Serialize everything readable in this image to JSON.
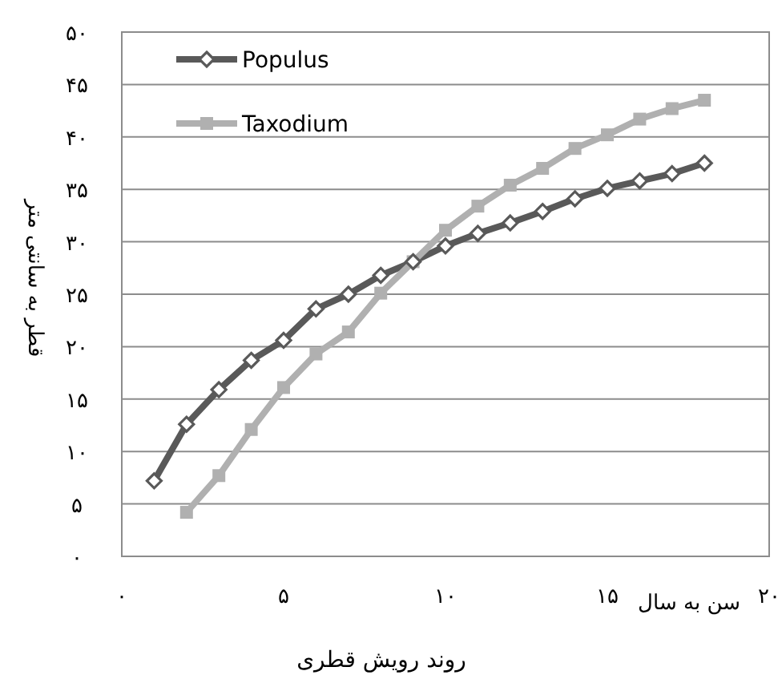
{
  "chart_data": {
    "type": "line",
    "title": "روند رویش قطری",
    "xlabel": "سن به سال",
    "ylabel": "قطر به سانتی متر",
    "xlim": [
      0,
      20
    ],
    "xticks": [
      {
        "value": 0,
        "label": "۰"
      },
      {
        "value": 5,
        "label": "۵"
      },
      {
        "value": 10,
        "label": "۱۰"
      },
      {
        "value": 15,
        "label": "۱۵"
      },
      {
        "value": 20,
        "label": "۲۰"
      }
    ],
    "ylim": [
      0,
      50
    ],
    "yticks": [
      {
        "value": 0,
        "label": "۰"
      },
      {
        "value": 5,
        "label": "۵"
      },
      {
        "value": 10,
        "label": "۱۰"
      },
      {
        "value": 15,
        "label": "۱۵"
      },
      {
        "value": 20,
        "label": "۲۰"
      },
      {
        "value": 25,
        "label": "۲۵"
      },
      {
        "value": 30,
        "label": "۳۰"
      },
      {
        "value": 35,
        "label": "۳۵"
      },
      {
        "value": 40,
        "label": "۴۰"
      },
      {
        "value": 45,
        "label": "۴۵"
      },
      {
        "value": 50,
        "label": "۵۰"
      }
    ],
    "grid": "y",
    "legend": "top left",
    "series": [
      {
        "name": "Populus",
        "color": "#595959",
        "marker": "diamond",
        "x": [
          1,
          2,
          3,
          4,
          5,
          6,
          7,
          8,
          9,
          10,
          11,
          12,
          13,
          14,
          15,
          16,
          17,
          18
        ],
        "values": [
          7.2,
          12.6,
          15.9,
          18.7,
          20.6,
          23.6,
          25.0,
          26.8,
          28.1,
          29.6,
          30.8,
          31.8,
          32.9,
          34.1,
          35.1,
          35.8,
          36.5,
          37.5
        ]
      },
      {
        "name": "Taxodium",
        "color": "#b0b0b0",
        "marker": "square",
        "x": [
          2,
          3,
          4,
          5,
          6,
          7,
          8,
          9,
          10,
          11,
          12,
          13,
          14,
          15,
          16,
          17,
          18
        ],
        "values": [
          4.2,
          7.7,
          12.1,
          16.1,
          19.3,
          21.4,
          25.1,
          28.1,
          31.1,
          33.4,
          35.4,
          37.0,
          38.9,
          40.2,
          41.7,
          42.7,
          43.5
        ]
      }
    ]
  }
}
